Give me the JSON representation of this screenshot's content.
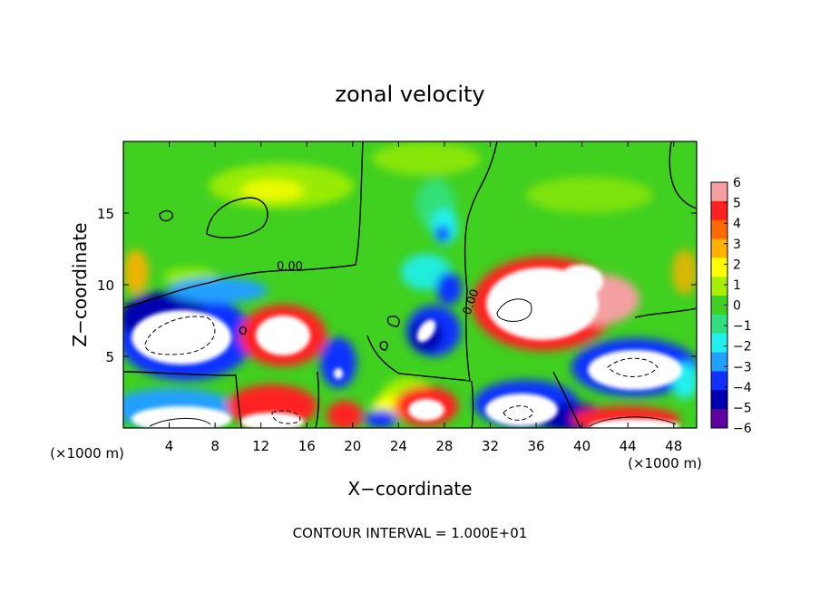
{
  "chart_data": {
    "type": "heatmap",
    "title": "zonal velocity",
    "xlabel": "X−coordinate",
    "ylabel": "Z−coordinate",
    "x_unit_label": "(×1000 m)",
    "footer": "CONTOUR INTERVAL = 1.000E+01",
    "xlim": [
      0,
      50
    ],
    "ylim": [
      0,
      20
    ],
    "x_ticks": [
      4,
      8,
      12,
      16,
      20,
      24,
      28,
      32,
      36,
      40,
      44,
      48
    ],
    "y_ticks": [
      5,
      10,
      15
    ],
    "colorbar": {
      "min": -6,
      "max": 6,
      "ticks": [
        "6",
        "5",
        "4",
        "3",
        "2",
        "1",
        "0",
        "−1",
        "−2",
        "−3",
        "−4",
        "−5",
        "−6"
      ],
      "colors": [
        "#f4a0a0",
        "#ff2020",
        "#ff6a00",
        "#ffb000",
        "#ffff00",
        "#a8f000",
        "#40d020",
        "#30e080",
        "#20f0f0",
        "#20a0ff",
        "#1030ff",
        "#0000b0",
        "#6000a0"
      ]
    },
    "contour_labels": [
      "0.00",
      "0.00"
    ],
    "color_over": "#ffffff",
    "color_under": "#ffffff"
  }
}
